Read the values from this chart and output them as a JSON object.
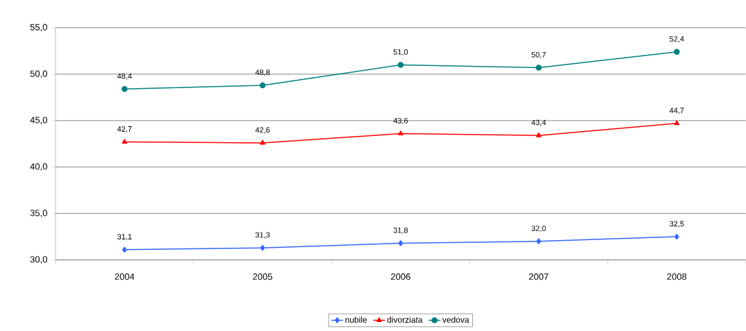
{
  "chart_data": {
    "type": "line",
    "categories": [
      "2004",
      "2005",
      "2006",
      "2007",
      "2008"
    ],
    "series": [
      {
        "name": "nubile",
        "color": "#3366ff",
        "marker": "diamond",
        "values": [
          31.1,
          31.3,
          31.8,
          32.0,
          32.5
        ],
        "value_labels": [
          "31,1",
          "31,3",
          "31,8",
          "32,0",
          "32,5"
        ]
      },
      {
        "name": "divorziata",
        "color": "#ff0000",
        "marker": "triangle",
        "values": [
          42.7,
          42.6,
          43.6,
          43.4,
          44.7
        ],
        "value_labels": [
          "42,7",
          "42,6",
          "43,6",
          "43,4",
          "44,7"
        ]
      },
      {
        "name": "vedova",
        "color": "#008080",
        "marker": "circle",
        "values": [
          48.4,
          48.8,
          51.0,
          50.7,
          52.4
        ],
        "value_labels": [
          "48,4",
          "48,8",
          "51,0",
          "50,7",
          "52,4"
        ]
      }
    ],
    "ylim": [
      30,
      55
    ],
    "yticks": [
      {
        "value": 30,
        "label": "30,0"
      },
      {
        "value": 35,
        "label": "35,0"
      },
      {
        "value": 40,
        "label": "40,0"
      },
      {
        "value": 45,
        "label": "45,0"
      },
      {
        "value": 50,
        "label": "50,0"
      },
      {
        "value": 55,
        "label": "55,0"
      }
    ],
    "grid": "y",
    "legend": "bottom",
    "line_style": "solid"
  }
}
